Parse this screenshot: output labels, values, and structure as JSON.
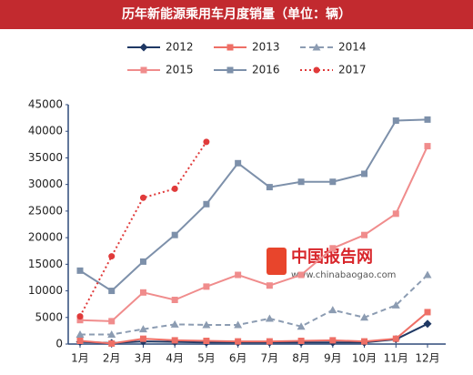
{
  "chart_data": {
    "type": "line",
    "title": "历年新能源乘用车月度销量（单位：辆）",
    "categories": [
      "1月",
      "2月",
      "3月",
      "4月",
      "5月",
      "6月",
      "7月",
      "8月",
      "9月",
      "10月",
      "11月",
      "12月"
    ],
    "series": [
      {
        "name": "2012",
        "color": "#1f3864",
        "marker": "diamond",
        "line_style": "solid",
        "values": [
          400,
          200,
          500,
          400,
          300,
          300,
          300,
          300,
          300,
          300,
          900,
          3800
        ]
      },
      {
        "name": "2013",
        "color": "#ee6f66",
        "marker": "square",
        "line_style": "solid",
        "values": [
          600,
          100,
          1000,
          700,
          600,
          500,
          500,
          600,
          700,
          500,
          1000,
          6000
        ]
      },
      {
        "name": "2014",
        "color": "#8c9cb2",
        "marker": "triangle",
        "line_style": "dashed",
        "values": [
          1800,
          1800,
          2800,
          3700,
          3600,
          3600,
          4800,
          3300,
          6400,
          5000,
          7300,
          13000
        ]
      },
      {
        "name": "2015",
        "color": "#f08c8c",
        "marker": "square",
        "line_style": "solid",
        "values": [
          4500,
          4300,
          9700,
          8300,
          10800,
          13000,
          11000,
          13000,
          18000,
          20500,
          24500,
          37200
        ]
      },
      {
        "name": "2016",
        "color": "#7d90aa",
        "marker": "square",
        "line_style": "solid",
        "values": [
          13800,
          10000,
          15500,
          20500,
          26300,
          34000,
          29500,
          30500,
          30500,
          32000,
          42000,
          42200
        ]
      },
      {
        "name": "2017",
        "color": "#e03a3a",
        "marker": "circle",
        "line_style": "dotted",
        "values": [
          5200,
          16500,
          27500,
          29200,
          38000,
          null,
          null,
          null,
          null,
          null,
          null,
          null
        ]
      }
    ],
    "ylim": [
      0,
      45000
    ],
    "yticks": [
      0,
      5000,
      10000,
      15000,
      20000,
      25000,
      30000,
      35000,
      40000,
      45000
    ],
    "grid": false,
    "watermark": {
      "title": "中国报告网",
      "url": "www.chinabaogao.com"
    }
  }
}
